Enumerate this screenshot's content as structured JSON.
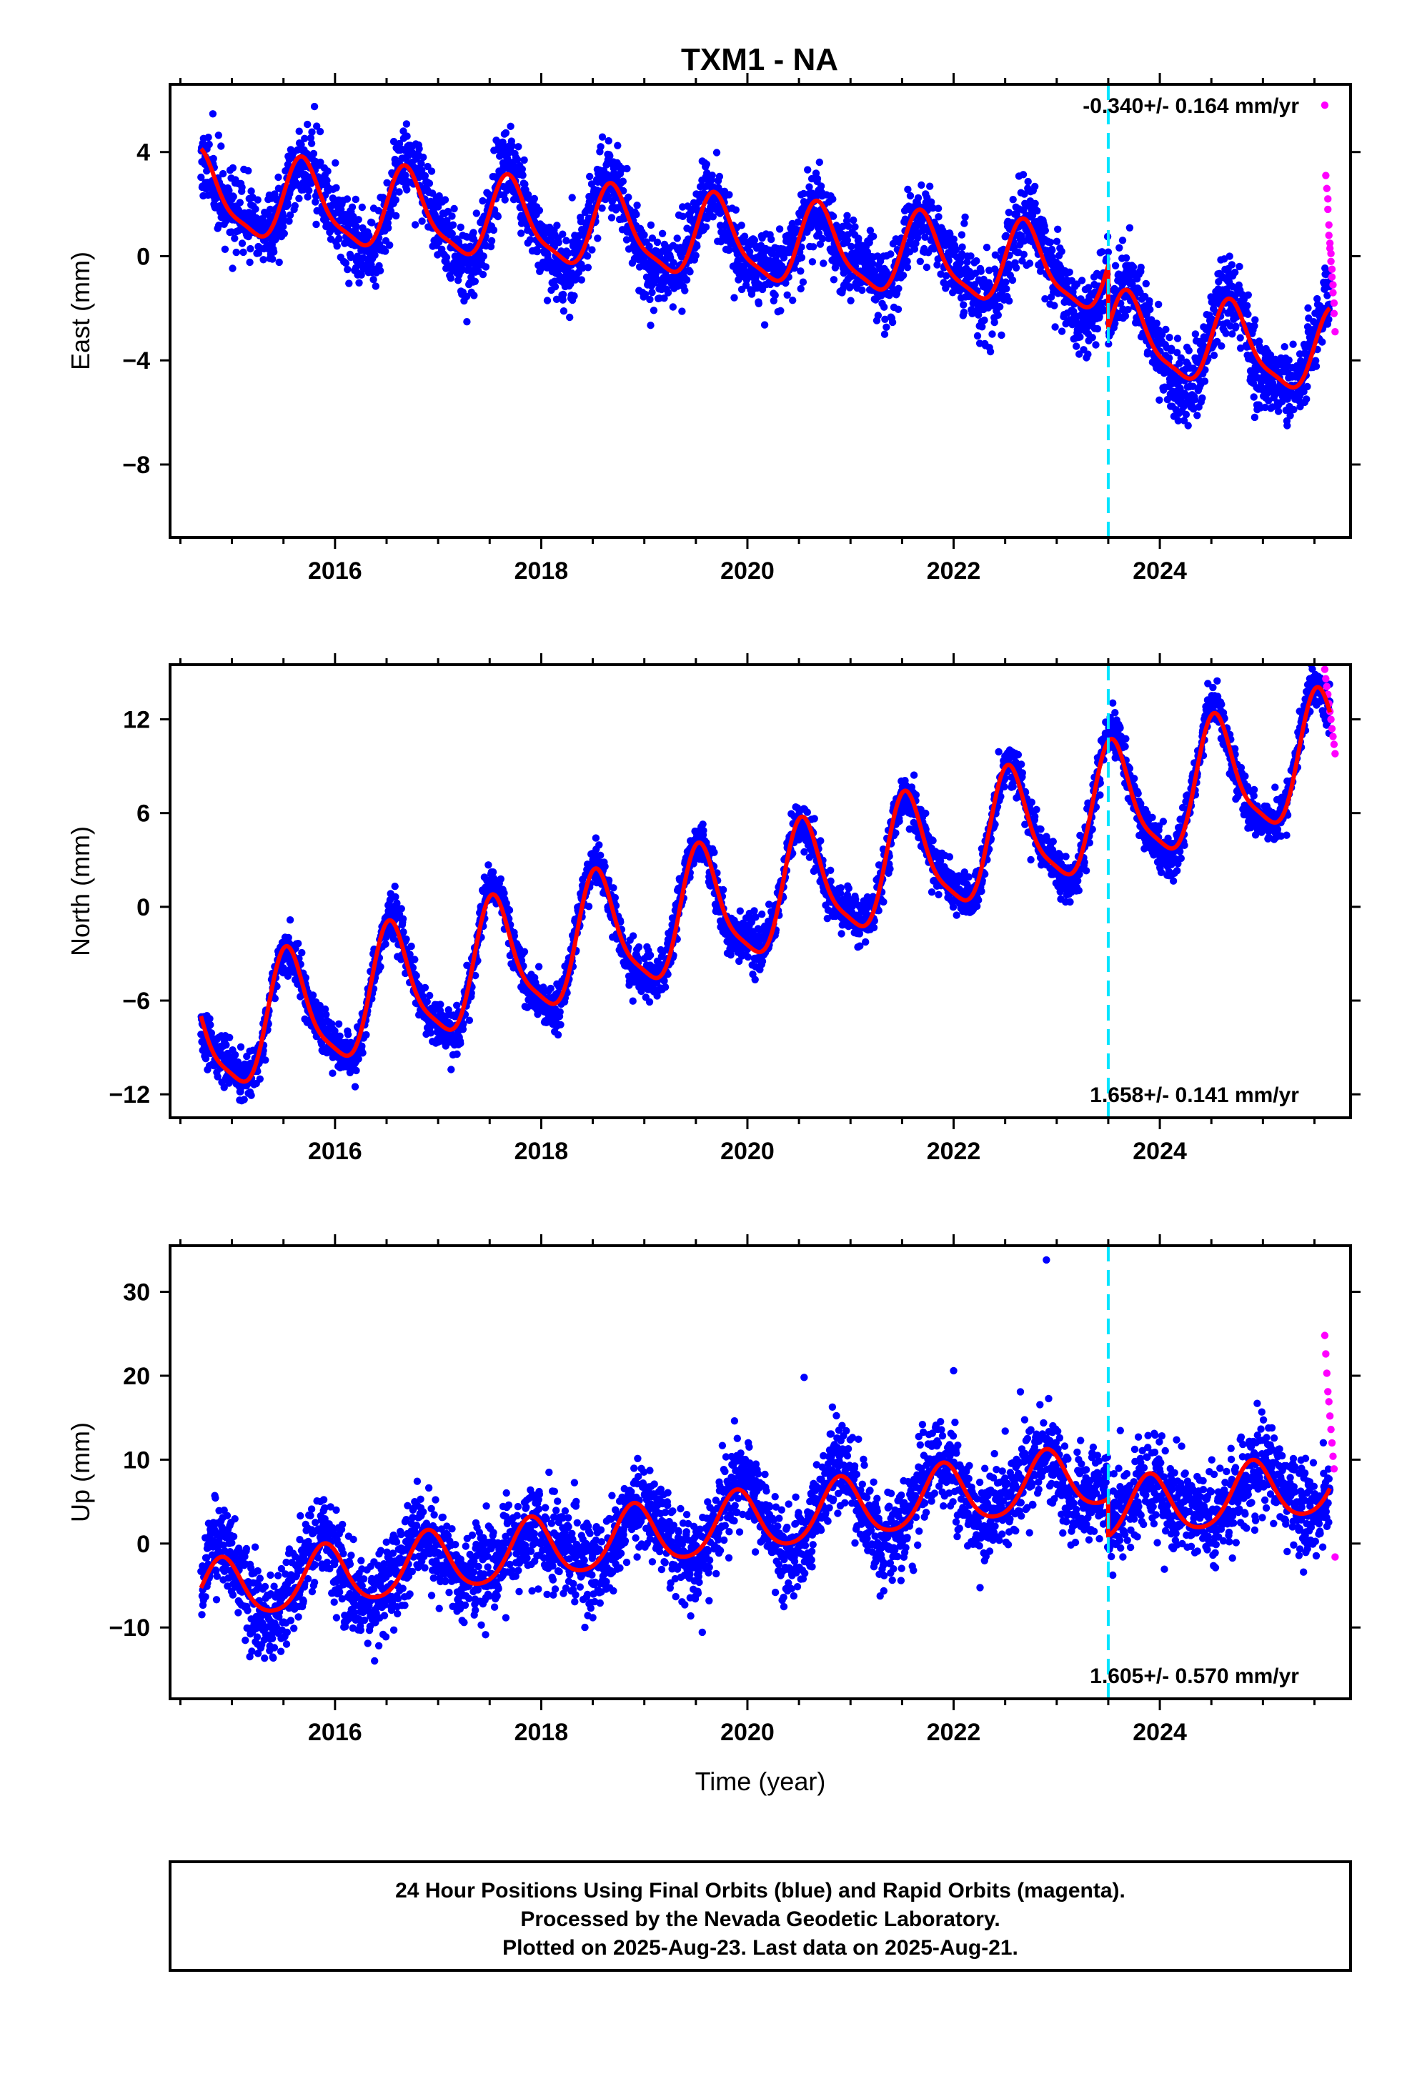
{
  "title": "TXM1 - NA",
  "footer": {
    "lines": [
      "24 Hour Positions Using Final Orbits (blue) and Rapid Orbits (magenta).",
      "Processed by the Nevada Geodetic Laboratory.",
      "Plotted on 2025-Aug-23. Last data on 2025-Aug-21."
    ]
  },
  "colors": {
    "final_orbits": "#0000ff",
    "rapid_orbits": "#ff00ff",
    "model_fit": "#ff0000",
    "equipment_change_line": "#00e5ff"
  },
  "chart_data": [
    {
      "type": "scatter",
      "component": "east",
      "title": "",
      "xlabel": "",
      "ylabel": "East (mm)",
      "xlim": [
        2014.4,
        2025.85
      ],
      "ylim": [
        -10.8,
        6.6
      ],
      "x_ticks": [
        2016,
        2018,
        2020,
        2022,
        2024
      ],
      "y_ticks": [
        4,
        0,
        -4,
        -8
      ],
      "y_tick_labels": [
        "4",
        "0",
        "−4",
        "−8"
      ],
      "rate_label": "-0.340+/- 0.164 mm/yr",
      "rate_position": "top-right",
      "grid": false,
      "offset_epoch": 2023.5,
      "model": {
        "start": 2014.7,
        "end": 2025.65,
        "trend_mm_per_yr": -0.34,
        "intercept_at_start": 2.3,
        "annual_amp": 1.5,
        "annual_peak": 0.7,
        "semiannual_amp": 0.4,
        "semiannual_peak": 0.15,
        "offset_mm": -2.4
      },
      "scatter": {
        "final_sigma": 0.9,
        "seed": 11
      },
      "rapid": {
        "x": [
          2025.6,
          2025.61,
          2025.62,
          2025.63,
          2025.63,
          2025.64,
          2025.64,
          2025.65,
          2025.65,
          2025.66,
          2025.66,
          2025.67,
          2025.67,
          2025.68,
          2025.68,
          2025.69,
          2025.69,
          2025.7
        ],
        "y": [
          5.8,
          3.1,
          2.6,
          2.2,
          1.8,
          1.2,
          0.8,
          0.5,
          0.3,
          0.1,
          -0.2,
          -0.5,
          -0.8,
          -1.1,
          -1.4,
          -1.8,
          -2.2,
          -2.9
        ]
      }
    },
    {
      "type": "scatter",
      "component": "north",
      "title": "",
      "xlabel": "",
      "ylabel": "North (mm)",
      "xlim": [
        2014.4,
        2025.85
      ],
      "ylim": [
        -13.5,
        15.5
      ],
      "x_ticks": [
        2016,
        2018,
        2020,
        2022,
        2024
      ],
      "y_ticks": [
        12,
        6,
        0,
        -6,
        -12
      ],
      "y_tick_labels": [
        "12",
        "6",
        "0",
        "−6",
        "−12"
      ],
      "rate_label": "1.658+/- 0.141 mm/yr",
      "rate_position": "bottom-right",
      "grid": false,
      "offset_epoch": 2023.5,
      "model": {
        "start": 2014.7,
        "end": 2025.65,
        "trend_mm_per_yr": 1.658,
        "intercept_at_start": -8.5,
        "annual_amp": 3.8,
        "annual_peak": 0.55,
        "semiannual_amp": 0.9,
        "semiannual_peak": 0.5,
        "offset_mm": 0.0
      },
      "scatter": {
        "final_sigma": 0.9,
        "seed": 23
      },
      "rapid": {
        "x": [
          2025.6,
          2025.61,
          2025.62,
          2025.63,
          2025.64,
          2025.65,
          2025.66,
          2025.67,
          2025.68,
          2025.69,
          2025.7
        ],
        "y": [
          15.2,
          14.6,
          14.1,
          13.6,
          13.0,
          12.5,
          12.0,
          11.4,
          10.9,
          10.4,
          9.8
        ]
      }
    },
    {
      "type": "scatter",
      "component": "up",
      "title": "",
      "xlabel": "Time (year)",
      "ylabel": "Up (mm)",
      "xlim": [
        2014.4,
        2025.85
      ],
      "ylim": [
        -18.5,
        35.5
      ],
      "x_ticks": [
        2016,
        2018,
        2020,
        2022,
        2024
      ],
      "y_ticks": [
        30,
        20,
        10,
        0,
        -10
      ],
      "y_tick_labels": [
        "30",
        "20",
        "10",
        "0",
        "−10"
      ],
      "rate_label": "1.605+/- 0.570 mm/yr",
      "rate_position": "bottom-right",
      "grid": false,
      "offset_epoch": 2023.5,
      "model": {
        "start": 2014.7,
        "end": 2025.65,
        "trend_mm_per_yr": 1.605,
        "intercept_at_start": -6.0,
        "annual_amp": 3.6,
        "annual_peak": 0.9,
        "semiannual_amp": 0.5,
        "semiannual_peak": 0.4,
        "offset_mm": -4.5
      },
      "scatter": {
        "final_sigma": 3.3,
        "seed": 37
      },
      "outliers": {
        "x": [
          2022.9,
          2020.55,
          2022.0
        ],
        "y": [
          33.8,
          19.8,
          20.6
        ]
      },
      "rapid": {
        "x": [
          2025.6,
          2025.61,
          2025.62,
          2025.63,
          2025.64,
          2025.65,
          2025.66,
          2025.67,
          2025.68,
          2025.69,
          2025.7
        ],
        "y": [
          24.8,
          22.6,
          20.3,
          18.1,
          16.9,
          15.2,
          13.6,
          12.0,
          10.4,
          8.9,
          -1.6
        ]
      }
    }
  ]
}
